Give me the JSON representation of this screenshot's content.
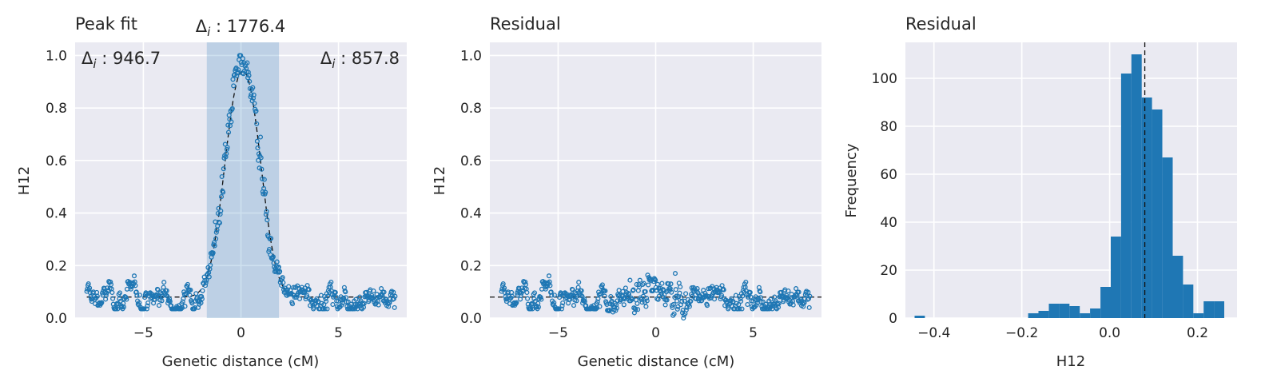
{
  "chart_data": [
    {
      "type": "scatter",
      "title": "Peak fit",
      "xlabel": "Genetic distance (cM)",
      "ylabel": "H12",
      "xlim": [
        -8.5,
        8.5
      ],
      "ylim": [
        0,
        1.05
      ],
      "xticks": [
        {
          "v": -5,
          "label": "−5"
        },
        {
          "v": 0,
          "label": "0"
        },
        {
          "v": 5,
          "label": "5"
        }
      ],
      "yticks": [
        {
          "v": 0,
          "label": "0.0"
        },
        {
          "v": 0.2,
          "label": "0.2"
        },
        {
          "v": 0.4,
          "label": "0.4"
        },
        {
          "v": 0.6,
          "label": "0.6"
        },
        {
          "v": 0.8,
          "label": "0.8"
        },
        {
          "v": 1.0,
          "label": "1.0"
        }
      ],
      "grid": true,
      "shaded_region": [
        -1.75,
        1.95
      ],
      "fit_curve": {
        "style": "dashed",
        "baseline": 0.08,
        "peak": 0.86,
        "center": 0.1,
        "width": 0.9
      },
      "annotations": [
        {
          "label": "Δi",
          "value": "946.7",
          "position": "top-left"
        },
        {
          "label": "Δi",
          "value": "1776.4",
          "position": "top-center"
        },
        {
          "label": "Δi",
          "value": "857.8",
          "position": "top-right"
        }
      ],
      "point_color": "#1f77b4"
    },
    {
      "type": "scatter",
      "title": "Residual",
      "xlabel": "Genetic distance (cM)",
      "ylabel": "H12",
      "xlim": [
        -8.5,
        8.5
      ],
      "ylim": [
        0,
        1.05
      ],
      "xticks": [
        {
          "v": -5,
          "label": "−5"
        },
        {
          "v": 0,
          "label": "0"
        },
        {
          "v": 5,
          "label": "5"
        }
      ],
      "yticks": [
        {
          "v": 0,
          "label": "0.0"
        },
        {
          "v": 0.2,
          "label": "0.2"
        },
        {
          "v": 0.4,
          "label": "0.4"
        },
        {
          "v": 0.6,
          "label": "0.6"
        },
        {
          "v": 0.8,
          "label": "0.8"
        },
        {
          "v": 1.0,
          "label": "1.0"
        }
      ],
      "grid": true,
      "hline": {
        "y": 0.08,
        "style": "dashed"
      },
      "point_color": "#1f77b4"
    },
    {
      "type": "bar",
      "title": "Residual",
      "xlabel": "H12",
      "ylabel": "Frequency",
      "xlim": [
        -0.465,
        0.29
      ],
      "ylim": [
        0,
        115
      ],
      "xticks": [
        {
          "v": -0.4,
          "label": "−0.4"
        },
        {
          "v": -0.2,
          "label": "−0.2"
        },
        {
          "v": 0.0,
          "label": "0.0"
        },
        {
          "v": 0.2,
          "label": "0.2"
        }
      ],
      "yticks": [
        {
          "v": 0,
          "label": "0"
        },
        {
          "v": 20,
          "label": "20"
        },
        {
          "v": 40,
          "label": "40"
        },
        {
          "v": 60,
          "label": "60"
        },
        {
          "v": 80,
          "label": "80"
        },
        {
          "v": 100,
          "label": "100"
        }
      ],
      "grid": true,
      "vline": {
        "x": 0.08,
        "style": "dashed"
      },
      "bin_width": 0.0235,
      "bins": [
        {
          "x0": -0.444,
          "count": 1
        },
        {
          "x0": -0.1855,
          "count": 2
        },
        {
          "x0": -0.162,
          "count": 3
        },
        {
          "x0": -0.1385,
          "count": 6
        },
        {
          "x0": -0.115,
          "count": 6
        },
        {
          "x0": -0.0915,
          "count": 5
        },
        {
          "x0": -0.068,
          "count": 2
        },
        {
          "x0": -0.0445,
          "count": 4
        },
        {
          "x0": -0.021,
          "count": 13
        },
        {
          "x0": 0.0025,
          "count": 34
        },
        {
          "x0": 0.026,
          "count": 102
        },
        {
          "x0": 0.0495,
          "count": 110
        },
        {
          "x0": 0.073,
          "count": 92
        },
        {
          "x0": 0.0965,
          "count": 87
        },
        {
          "x0": 0.12,
          "count": 67
        },
        {
          "x0": 0.1435,
          "count": 26
        },
        {
          "x0": 0.167,
          "count": 14
        },
        {
          "x0": 0.1905,
          "count": 2
        },
        {
          "x0": 0.214,
          "count": 7
        },
        {
          "x0": 0.2375,
          "count": 7
        }
      ],
      "bar_color": "#1f77b4"
    }
  ]
}
